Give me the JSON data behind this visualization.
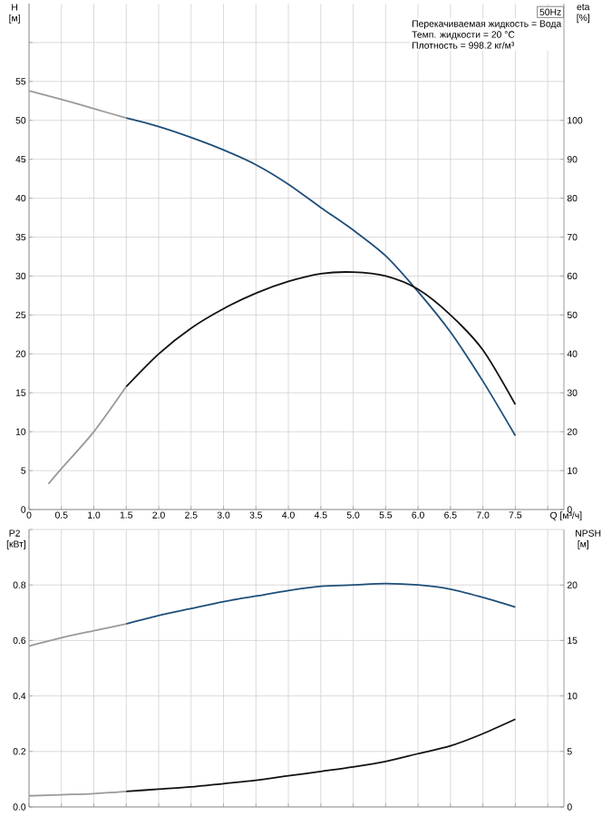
{
  "chart_data": [
    {
      "type": "line",
      "xlabel": "Q [м³/ч]",
      "ylabel": "H [м]",
      "y2label": "eta [%]",
      "grid": true,
      "annotations": [
        "50Hz",
        "Перекачиваемая жидкость = Вода",
        "Темп. жидкости = 20 °C",
        "Плотность = 998.2 кг/м³"
      ],
      "xlim": [
        0,
        8.25
      ],
      "xticks": [
        0,
        0.5,
        {
          "value": 1,
          "label": "1.0"
        },
        1.5,
        {
          "value": 2,
          "label": "2.0"
        },
        2.5,
        {
          "value": 3,
          "label": "3.0"
        },
        3.5,
        {
          "value": 4,
          "label": "4.0"
        },
        4.5,
        {
          "value": 5,
          "label": "5.0"
        },
        5.5,
        {
          "value": 6,
          "label": "6.0"
        },
        6.5,
        {
          "value": 7,
          "label": "7.0"
        },
        7.5,
        {
          "value": 8,
          "label": null
        }
      ],
      "ylim": [
        0,
        65
      ],
      "yticks": [
        0,
        5,
        10,
        15,
        20,
        25,
        30,
        35,
        40,
        45,
        50,
        55,
        {
          "value": 60,
          "label": null
        }
      ],
      "y2lim": [
        0,
        130
      ],
      "y2ticks": [
        0,
        10,
        20,
        30,
        40,
        50,
        60,
        70,
        80,
        90,
        100
      ],
      "series": [
        {
          "color": "#9a9a9a",
          "x": [
            0,
            0.5,
            1.0,
            1.5
          ],
          "values": [
            53.8,
            52.7,
            51.5,
            50.3
          ]
        },
        {
          "color": "#1f4e79",
          "x": [
            1.5,
            2.0,
            2.5,
            3.0,
            3.5,
            4.0,
            4.5,
            5.0,
            5.5,
            6.0,
            6.5,
            7.0,
            7.5
          ],
          "values": [
            50.3,
            49.2,
            47.8,
            46.2,
            44.3,
            41.8,
            38.8,
            35.9,
            32.6,
            28.0,
            22.8,
            16.5,
            9.5
          ]
        },
        {
          "color": "#9a9a9a",
          "axis": "y2",
          "x": [
            0.3,
            0.5,
            1.0,
            1.5
          ],
          "values": [
            6.6,
            10.5,
            20,
            31.6
          ]
        },
        {
          "color": "#111111",
          "axis": "y2",
          "x": [
            1.5,
            2.0,
            2.5,
            3.0,
            3.5,
            4.0,
            4.5,
            5.0,
            5.5,
            6.0,
            6.5,
            7.0,
            7.5
          ],
          "values": [
            31.6,
            40,
            46.6,
            51.6,
            55.6,
            58.6,
            60.6,
            61,
            60,
            56.6,
            50,
            41,
            27
          ]
        }
      ]
    },
    {
      "type": "line",
      "ylabel": "P2 [кВт]",
      "y2label": "NPSH [м]",
      "grid": true,
      "tick_labels": "y",
      "xlim": [
        0,
        8.25
      ],
      "xticks": [
        0,
        0.5,
        1,
        1.5,
        2,
        2.5,
        3,
        3.5,
        4,
        4.5,
        5,
        5.5,
        6,
        6.5,
        7,
        7.5,
        8
      ],
      "ylim": [
        0,
        1.0
      ],
      "yticks": [
        {
          "value": 0,
          "label": "0.0"
        },
        0.2,
        0.4,
        0.6,
        0.8,
        {
          "value": 1.0,
          "label": null
        }
      ],
      "y2lim": [
        0,
        25
      ],
      "y2ticks": [
        0,
        5,
        10,
        15,
        20
      ],
      "series": [
        {
          "color": "#9a9a9a",
          "x": [
            0,
            0.5,
            1.0,
            1.5
          ],
          "values": [
            0.58,
            0.61,
            0.635,
            0.66
          ]
        },
        {
          "color": "#1f4e79",
          "x": [
            1.5,
            2.0,
            2.5,
            3.0,
            3.5,
            4.0,
            4.5,
            5.0,
            5.5,
            6.0,
            6.5,
            7.0,
            7.5
          ],
          "values": [
            0.66,
            0.69,
            0.715,
            0.74,
            0.76,
            0.78,
            0.795,
            0.8,
            0.805,
            0.8,
            0.785,
            0.755,
            0.72
          ]
        },
        {
          "color": "#9a9a9a",
          "axis": "y2",
          "x": [
            0,
            0.5,
            1.0,
            1.5
          ],
          "values": [
            1.0,
            1.1,
            1.2,
            1.4
          ]
        },
        {
          "color": "#111111",
          "axis": "y2",
          "x": [
            1.5,
            2.0,
            2.5,
            3.0,
            3.5,
            4.0,
            4.5,
            5.0,
            5.5,
            6.0,
            6.5,
            7.0,
            7.5
          ],
          "values": [
            1.4,
            1.6,
            1.8,
            2.1,
            2.4,
            2.8,
            3.2,
            3.6,
            4.1,
            4.8,
            5.5,
            6.6,
            7.9
          ]
        }
      ]
    }
  ]
}
